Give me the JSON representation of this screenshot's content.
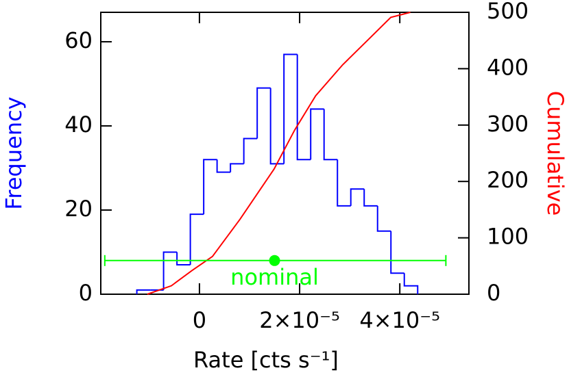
{
  "chart_data": {
    "type": "histogram",
    "xlabel": "Rate [cts s⁻¹]",
    "ylabel": "Frequency",
    "y2label": "Cumulative",
    "bins": [
      -1.25e-05,
      -9.83e-06,
      -7.16e-06,
      -4.49e-06,
      -1.82e-06,
      8.5e-07,
      3.52e-06,
      6.19e-06,
      8.86e-06,
      1.153e-05,
      1.42e-05,
      1.687e-05,
      1.954e-05,
      2.221e-05,
      2.488e-05,
      2.755e-05,
      3.022e-05,
      3.289e-05,
      3.556e-05,
      3.823e-05,
      4.09e-05,
      4.357e-05
    ],
    "values": [
      1,
      1,
      10,
      7,
      19,
      32,
      29,
      31,
      37,
      49,
      31,
      57,
      32,
      44,
      32,
      21,
      25,
      21,
      15,
      5,
      2
    ],
    "color": "#0000ff",
    "xlim": [
      -1.97e-05,
      5.38e-05
    ],
    "xticks": [
      0,
      {
        "value": 2e-05,
        "label": "2×10⁻⁵"
      },
      {
        "value": 4e-05,
        "label": "4×10⁻⁵"
      }
    ],
    "ylim": [
      0,
      67
    ],
    "yticks": [
      0,
      20,
      40,
      60
    ],
    "y2lim": [
      0,
      500
    ],
    "y2ticks": [
      0,
      100,
      200,
      300,
      400,
      500
    ],
    "cumulative": {
      "axis": "y2",
      "color": "#ff0000",
      "x": [
        -1.04e-05,
        -5.6e-06,
        -1.5e-06,
        2.6e-06,
        8.1e-06,
        1.49e-05,
        1.9e-05,
        2.32e-05,
        2.86e-05,
        3.41e-05,
        3.82e-05,
        4.21e-05
      ],
      "values": [
        0,
        15,
        42,
        67,
        133,
        222,
        291,
        352,
        407,
        455,
        491,
        500
      ]
    },
    "nominal": {
      "label": "nominal",
      "color": "#00ff00",
      "x": 1.5e-05,
      "y": 8,
      "xmin": -1.89e-05,
      "xmax": 4.92e-05
    }
  }
}
